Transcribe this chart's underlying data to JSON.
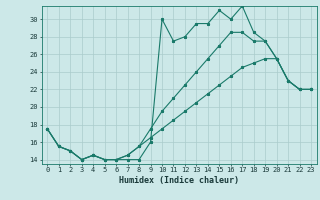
{
  "title": "",
  "xlabel": "Humidex (Indice chaleur)",
  "background_color": "#cce8e8",
  "grid_color": "#aacccc",
  "line_color": "#1a7a6a",
  "xlim": [
    -0.5,
    23.5
  ],
  "ylim": [
    13.5,
    31.5
  ],
  "yticks": [
    14,
    16,
    18,
    20,
    22,
    24,
    26,
    28,
    30
  ],
  "xticks": [
    0,
    1,
    2,
    3,
    4,
    5,
    6,
    7,
    8,
    9,
    10,
    11,
    12,
    13,
    14,
    15,
    16,
    17,
    18,
    19,
    20,
    21,
    22,
    23
  ],
  "series1_x": [
    0,
    1,
    2,
    3,
    4,
    5,
    6,
    7,
    8,
    9,
    10,
    11,
    12,
    13,
    14,
    15,
    16,
    17,
    18,
    19,
    20,
    21,
    22,
    23
  ],
  "series1_y": [
    17.5,
    15.5,
    15.0,
    14.0,
    14.5,
    14.0,
    14.0,
    14.0,
    14.0,
    16.0,
    30.0,
    27.5,
    28.0,
    29.5,
    29.5,
    31.0,
    30.0,
    31.5,
    28.5,
    27.5,
    25.5,
    23.0,
    22.0,
    22.0
  ],
  "series2_x": [
    0,
    1,
    2,
    3,
    4,
    5,
    6,
    7,
    8,
    9,
    10,
    11,
    12,
    13,
    14,
    15,
    16,
    17,
    18,
    19,
    20,
    21,
    22,
    23
  ],
  "series2_y": [
    17.5,
    15.5,
    15.0,
    14.0,
    14.5,
    14.0,
    14.0,
    14.5,
    15.5,
    17.5,
    19.5,
    21.0,
    22.5,
    24.0,
    25.5,
    27.0,
    28.5,
    28.5,
    27.5,
    27.5,
    25.5,
    23.0,
    22.0,
    22.0
  ],
  "series3_x": [
    0,
    1,
    2,
    3,
    4,
    5,
    6,
    7,
    8,
    9,
    10,
    11,
    12,
    13,
    14,
    15,
    16,
    17,
    18,
    19,
    20,
    21,
    22,
    23
  ],
  "series3_y": [
    17.5,
    15.5,
    15.0,
    14.0,
    14.5,
    14.0,
    14.0,
    14.5,
    15.5,
    16.5,
    17.5,
    18.5,
    19.5,
    20.5,
    21.5,
    22.5,
    23.5,
    24.5,
    25.0,
    25.5,
    25.5,
    23.0,
    22.0,
    22.0
  ],
  "xlabel_fontsize": 6,
  "tick_fontsize": 5,
  "marker_size": 2.0,
  "line_width": 0.8
}
